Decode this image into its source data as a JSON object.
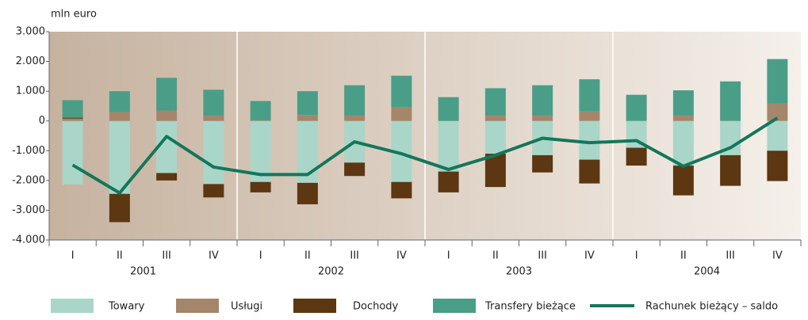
{
  "chart_data": {
    "type": "bar",
    "y_label": "mln euro",
    "categories": [
      "I",
      "II",
      "III",
      "IV",
      "I",
      "II",
      "III",
      "IV",
      "I",
      "II",
      "III",
      "IV",
      "I",
      "II",
      "III",
      "IV"
    ],
    "years": [
      "2001",
      "2002",
      "2003",
      "2004"
    ],
    "series": [
      {
        "name": "Towary",
        "color": "#a9d6c9",
        "values": [
          -2130,
          -2450,
          -1750,
          -2120,
          -2050,
          -2080,
          -1400,
          -2050,
          -1700,
          -1100,
          -1150,
          -1300,
          -900,
          -1500,
          -1150,
          -1000
        ]
      },
      {
        "name": "Usługi",
        "color": "#a5866a",
        "values": [
          80,
          300,
          350,
          180,
          20,
          200,
          180,
          470,
          0,
          180,
          180,
          320,
          0,
          180,
          0,
          580
        ]
      },
      {
        "name": "Dochody",
        "color": "#5c3712",
        "values": [
          30,
          -950,
          -250,
          -450,
          -350,
          -720,
          -450,
          -550,
          -700,
          -1120,
          -580,
          -800,
          -600,
          -1000,
          -1030,
          -1020
        ]
      },
      {
        "name": "Transfery bieżące",
        "color": "#4a9e88",
        "values": [
          590,
          700,
          1100,
          870,
          650,
          800,
          1020,
          1050,
          800,
          920,
          1020,
          1080,
          880,
          850,
          1330,
          1500
        ]
      },
      {
        "name": "Rachunek bieżący – saldo",
        "color": "#13775a",
        "type": "line",
        "values": [
          -1480,
          -2420,
          -520,
          -1550,
          -1800,
          -1800,
          -700,
          -1100,
          -1630,
          -1150,
          -580,
          -730,
          -660,
          -1520,
          -900,
          100
        ]
      }
    ],
    "ylim": [
      -4000,
      3000
    ],
    "yticks": [
      {
        "value": 3000,
        "label": "3.000"
      },
      {
        "value": 2000,
        "label": "2.000"
      },
      {
        "value": 1000,
        "label": "1.000"
      },
      0,
      {
        "value": -1000,
        "label": "-1.000"
      },
      {
        "value": -2000,
        "label": "-2.000"
      },
      {
        "value": -3000,
        "label": "-3.000"
      },
      {
        "value": -4000,
        "label": "-4.000"
      }
    ]
  }
}
